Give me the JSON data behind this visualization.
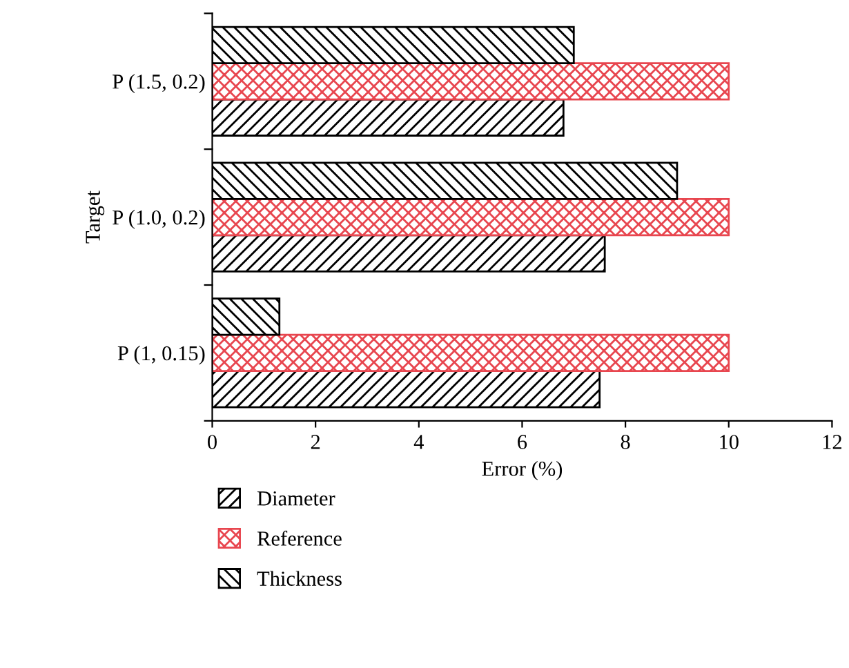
{
  "chart_data": {
    "type": "bar",
    "orientation": "horizontal",
    "ylabel": "Target",
    "xlabel": "Error (%)",
    "categories": [
      "P (1.5, 0.2)",
      "P (1.0, 0.2)",
      "P (1, 0.15)"
    ],
    "series": [
      {
        "name": "Diameter",
        "color": "#000000",
        "values": [
          6.8,
          7.6,
          7.5
        ]
      },
      {
        "name": "Reference",
        "color": "#e8464f",
        "values": [
          10,
          10,
          10
        ]
      },
      {
        "name": "Thickness",
        "color": "#000000",
        "values": [
          7.0,
          9.0,
          1.3
        ]
      }
    ],
    "xlim": [
      0,
      12
    ],
    "xticks": [
      0,
      2,
      4,
      6,
      8,
      10,
      12
    ],
    "grid": false,
    "legend": "bottom"
  }
}
